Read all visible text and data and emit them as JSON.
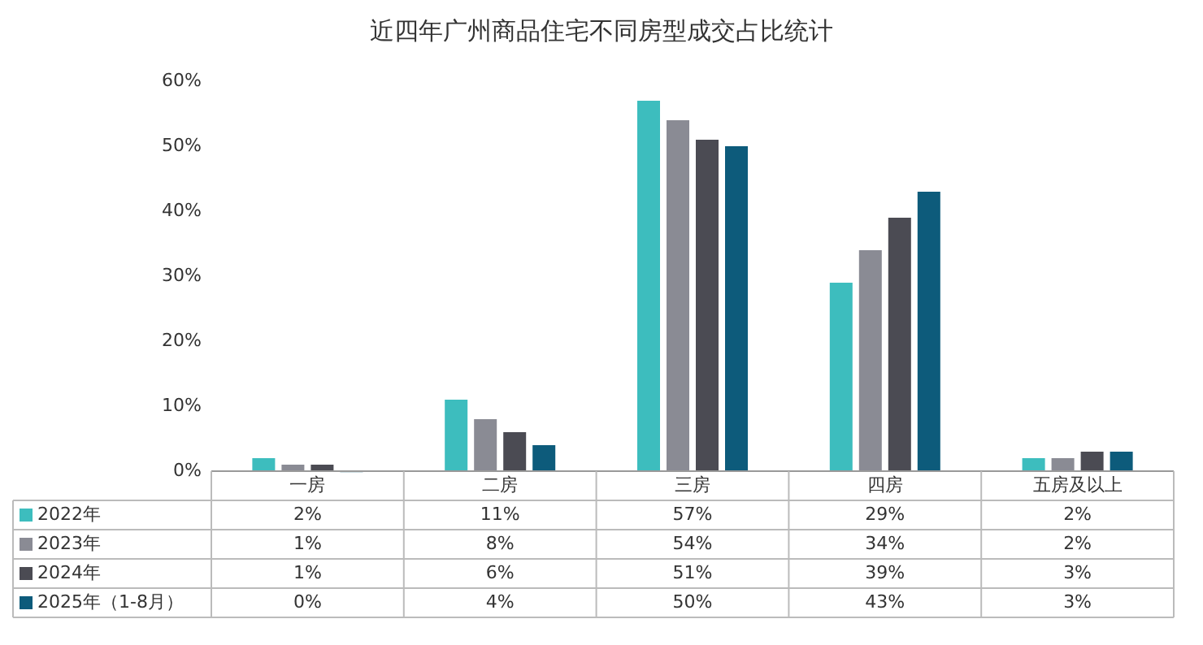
{
  "chart_data": {
    "type": "bar",
    "title": "近四年广州商品住宅不同房型成交占比统计",
    "categories": [
      "一房",
      "二房",
      "三房",
      "四房",
      "五房及以上"
    ],
    "series": [
      {
        "name": "2022年",
        "color": "#3dbdbe",
        "values": [
          2,
          11,
          57,
          29,
          2
        ],
        "value_labels": [
          "2%",
          "11%",
          "57%",
          "29%",
          "2%"
        ]
      },
      {
        "name": "2023年",
        "color": "#8a8b94",
        "values": [
          1,
          8,
          54,
          34,
          2
        ],
        "value_labels": [
          "1%",
          "8%",
          "54%",
          "34%",
          "2%"
        ]
      },
      {
        "name": "2024年",
        "color": "#4b4b53",
        "values": [
          1,
          6,
          51,
          39,
          3
        ],
        "value_labels": [
          "1%",
          "6%",
          "51%",
          "39%",
          "3%"
        ]
      },
      {
        "name": "2025年（1-8月）",
        "color": "#0d5b7b",
        "values": [
          0,
          4,
          50,
          43,
          3
        ],
        "value_labels": [
          "0%",
          "4%",
          "50%",
          "43%",
          "3%"
        ]
      }
    ],
    "ylim": [
      0,
      60
    ],
    "yticks": [
      {
        "value": 0,
        "label": "0%"
      },
      {
        "value": 10,
        "label": "10%"
      },
      {
        "value": 20,
        "label": "20%"
      },
      {
        "value": 30,
        "label": "30%"
      },
      {
        "value": 40,
        "label": "40%"
      },
      {
        "value": 50,
        "label": "50%"
      },
      {
        "value": 60,
        "label": "60%"
      }
    ],
    "legend": "bottom left"
  }
}
